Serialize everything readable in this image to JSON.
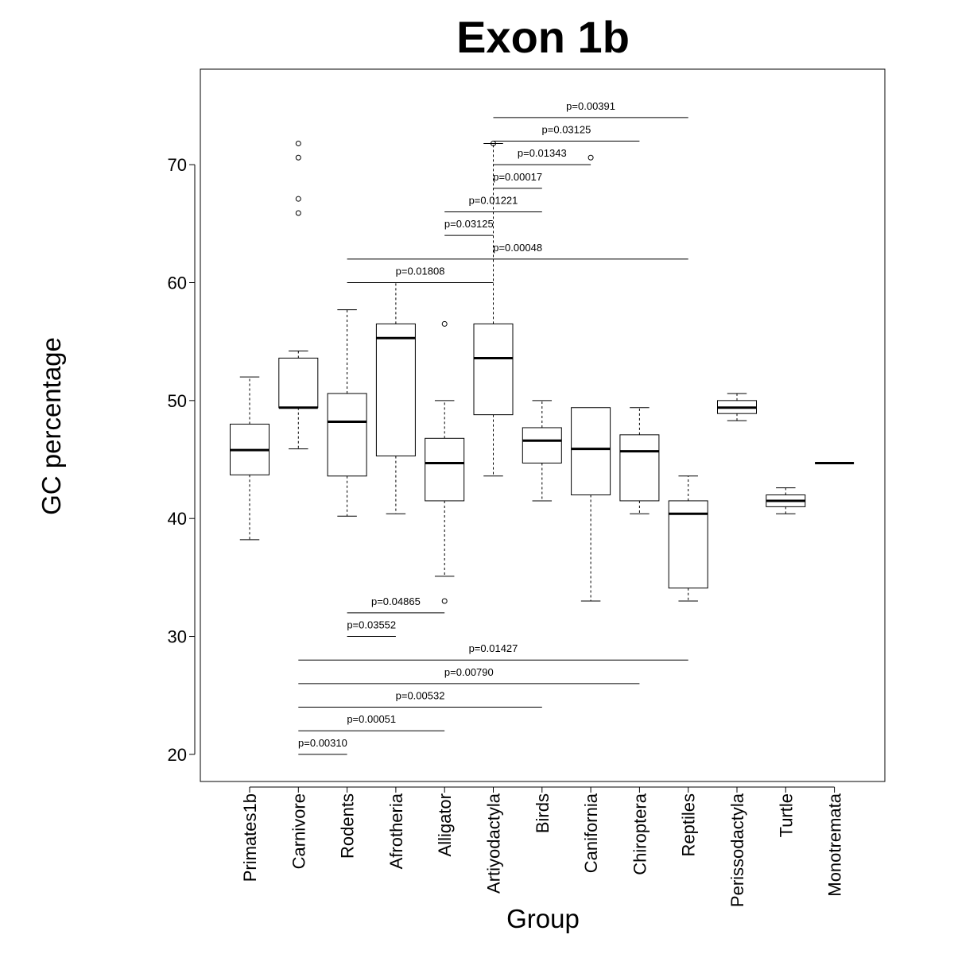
{
  "chart_data": {
    "type": "boxplot",
    "title": "Exon 1b",
    "xlabel": "Group",
    "ylabel": "GC percentage",
    "ylim": [
      17.7,
      78.1
    ],
    "yticks": [
      20,
      30,
      40,
      50,
      60,
      70
    ],
    "grid": false,
    "categories": [
      "Primates1b",
      "Carnivore",
      "Rodents",
      "Afrotheria",
      "Alligator",
      "Artiyodactyla",
      "Birds",
      "Canifornia",
      "Chiroptera",
      "Reptiles",
      "Perissodactyla",
      "Turtle",
      "Monotremata"
    ],
    "boxes": [
      {
        "min": 38.2,
        "q1": 43.7,
        "median": 45.8,
        "q3": 48.0,
        "max": 52.0,
        "outliers": []
      },
      {
        "min": 45.9,
        "q1": 49.4,
        "median": 49.4,
        "q3": 53.6,
        "max": 54.2,
        "outliers": [
          65.9,
          67.1,
          70.6,
          71.8
        ]
      },
      {
        "min": 40.2,
        "q1": 43.6,
        "median": 48.2,
        "q3": 50.6,
        "max": 57.7,
        "outliers": []
      },
      {
        "min": 40.4,
        "q1": 45.3,
        "median": 55.3,
        "q3": 56.5,
        "max": 60.0,
        "outliers": []
      },
      {
        "min": 35.1,
        "q1": 41.5,
        "median": 44.7,
        "q3": 46.8,
        "max": 50.0,
        "outliers": [
          56.5,
          33.0
        ]
      },
      {
        "min": 43.6,
        "q1": 48.8,
        "median": 53.6,
        "q3": 56.5,
        "max": 71.8,
        "outliers": [
          71.8
        ]
      },
      {
        "min": 41.5,
        "q1": 44.7,
        "median": 46.6,
        "q3": 47.7,
        "max": 50.0,
        "outliers": []
      },
      {
        "min": 33.0,
        "q1": 42.0,
        "median": 45.9,
        "q3": 49.4,
        "max": 49.4,
        "outliers": [
          70.6
        ]
      },
      {
        "min": 40.4,
        "q1": 41.5,
        "median": 45.7,
        "q3": 47.1,
        "max": 49.4,
        "outliers": []
      },
      {
        "min": 33.0,
        "q1": 34.1,
        "median": 40.4,
        "q3": 41.5,
        "max": 43.6,
        "outliers": []
      },
      {
        "min": 48.3,
        "q1": 48.9,
        "median": 49.4,
        "q3": 50.0,
        "max": 50.6,
        "outliers": []
      },
      {
        "min": 40.4,
        "q1": 41.0,
        "median": 41.5,
        "q3": 42.0,
        "max": 42.6,
        "outliers": []
      },
      {
        "min": 44.7,
        "q1": 44.7,
        "median": 44.7,
        "q3": 44.7,
        "max": 44.7,
        "outliers": []
      }
    ],
    "annotations": [
      {
        "from": 5,
        "to": 9,
        "y": 74,
        "label": "p=0.00391"
      },
      {
        "from": 5,
        "to": 8,
        "y": 72,
        "label": "p=0.03125"
      },
      {
        "from": 5,
        "to": 7,
        "y": 70,
        "label": "p=0.01343"
      },
      {
        "from": 5,
        "to": 6,
        "y": 68,
        "label": "p=0.00017"
      },
      {
        "from": 4,
        "to": 6,
        "y": 66,
        "label": "p=0.01221"
      },
      {
        "from": 4,
        "to": 5,
        "y": 64,
        "label": "p=0.03125"
      },
      {
        "from": 2,
        "to": 9,
        "y": 62,
        "label": "p=0.00048"
      },
      {
        "from": 2,
        "to": 5,
        "y": 60,
        "label": "p=0.01808"
      },
      {
        "from": 2,
        "to": 4,
        "y": 32,
        "label": "p=0.04865"
      },
      {
        "from": 2,
        "to": 3,
        "y": 30,
        "label": "p=0.03552"
      },
      {
        "from": 1,
        "to": 9,
        "y": 28,
        "label": "p=0.01427"
      },
      {
        "from": 1,
        "to": 8,
        "y": 26,
        "label": "p=0.00790"
      },
      {
        "from": 1,
        "to": 6,
        "y": 24,
        "label": "p=0.00532"
      },
      {
        "from": 1,
        "to": 4,
        "y": 22,
        "label": "p=0.00051"
      },
      {
        "from": 1,
        "to": 2,
        "y": 20,
        "label": "p=0.00310"
      }
    ]
  }
}
